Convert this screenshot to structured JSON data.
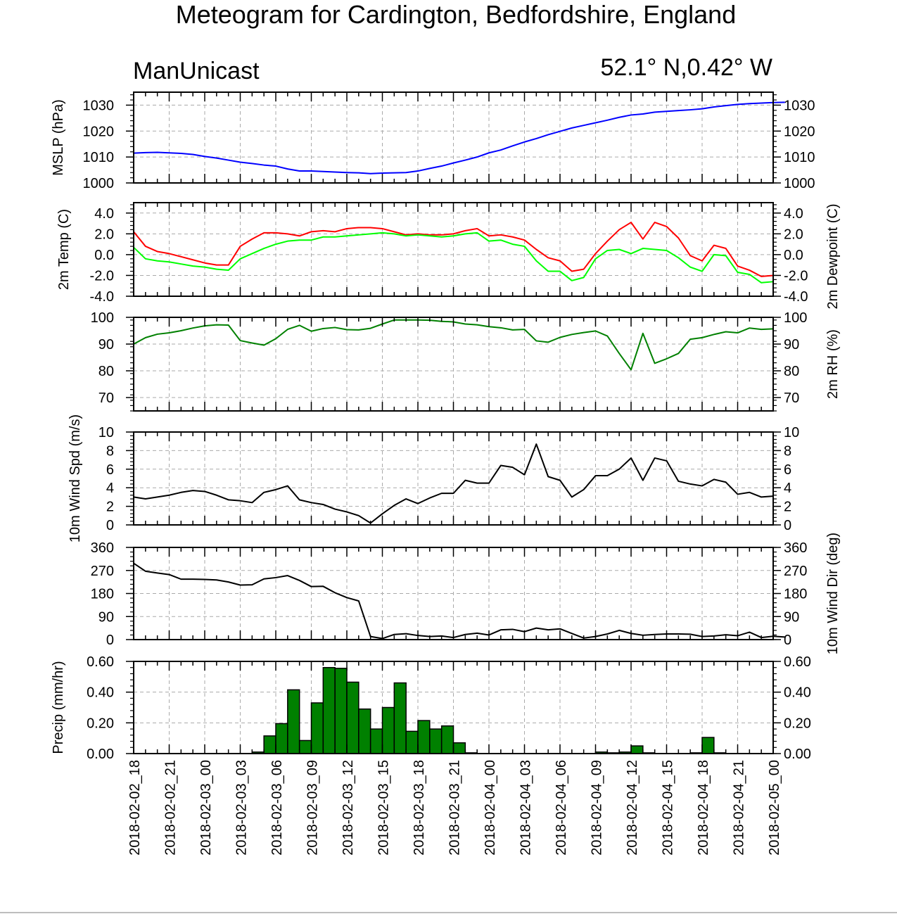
{
  "header": {
    "title": "Meteogram for Cardington, Bedfordshire, England",
    "model": "ManUnicast",
    "location": "52.1° N,0.42° W"
  },
  "chart_data": [
    {
      "id": "mslp",
      "type": "line",
      "ylabel": "MSLP (hPa)",
      "ylim": [
        1000,
        1035
      ],
      "yticks": [
        1000,
        1010,
        1020,
        1030
      ],
      "ytick_labels": [
        "1000",
        "1010",
        "1020",
        "1030"
      ],
      "series": [
        {
          "color": "#0000ff",
          "values": [
            1011.5,
            1011.7,
            1011.8,
            1011.6,
            1011.4,
            1011.0,
            1010.2,
            1009.6,
            1008.8,
            1008.0,
            1007.5,
            1006.9,
            1006.5,
            1005.4,
            1004.6,
            1004.6,
            1004.4,
            1004.2,
            1004.0,
            1003.9,
            1003.6,
            1003.8,
            1003.9,
            1004.0,
            1004.6,
            1005.6,
            1006.5,
            1007.7,
            1008.8,
            1010.0,
            1011.6,
            1012.7,
            1014.3,
            1015.8,
            1017.1,
            1018.6,
            1019.9,
            1021.2,
            1022.2,
            1023.2,
            1024.2,
            1025.3,
            1026.2,
            1026.6,
            1027.3,
            1027.6,
            1027.9,
            1028.2,
            1028.6,
            1029.3,
            1029.8,
            1030.3,
            1030.6,
            1030.8,
            1031.0,
            1031.1
          ]
        }
      ]
    },
    {
      "id": "temp",
      "type": "line",
      "ylabel": "2m Temp (C)",
      "ylabel_right": "2m Dewpoint (C)",
      "ylim": [
        -4,
        5
      ],
      "yticks": [
        -4,
        -2,
        0,
        2,
        4
      ],
      "ytick_labels": [
        "-4.0",
        "-2.0",
        "0.0",
        "2.0",
        "4.0"
      ],
      "series": [
        {
          "color": "#ff0000",
          "values": [
            2.2,
            0.8,
            0.3,
            0.1,
            -0.2,
            -0.5,
            -0.8,
            -1.0,
            -1.0,
            0.8,
            1.5,
            2.1,
            2.1,
            2.0,
            1.8,
            2.2,
            2.3,
            2.2,
            2.5,
            2.6,
            2.6,
            2.5,
            2.2,
            1.9,
            2.0,
            1.9,
            1.9,
            2.0,
            2.3,
            2.5,
            1.8,
            1.9,
            1.7,
            1.4,
            0.5,
            -0.3,
            -0.6,
            -1.6,
            -1.4,
            0.1,
            1.3,
            2.4,
            3.1,
            1.5,
            3.1,
            2.7,
            1.6,
            -0.1,
            -0.6,
            0.9,
            0.6,
            -1.1,
            -1.5,
            -2.1,
            -2.0
          ]
        },
        {
          "color": "#00ff00",
          "values": [
            0.7,
            -0.4,
            -0.6,
            -0.7,
            -0.9,
            -1.1,
            -1.2,
            -1.4,
            -1.5,
            -0.4,
            0.1,
            0.6,
            1.0,
            1.3,
            1.4,
            1.4,
            1.7,
            1.7,
            1.8,
            1.9,
            2.0,
            2.1,
            2.0,
            1.8,
            1.9,
            1.8,
            1.7,
            1.8,
            2.0,
            2.1,
            1.3,
            1.4,
            1.0,
            0.8,
            -0.6,
            -1.6,
            -1.6,
            -2.5,
            -2.2,
            -0.4,
            0.4,
            0.5,
            0.1,
            0.6,
            0.5,
            0.4,
            -0.3,
            -1.2,
            -1.6,
            0.0,
            -0.1,
            -1.7,
            -1.9,
            -2.7,
            -2.6
          ]
        }
      ]
    },
    {
      "id": "rh",
      "type": "line",
      "ylabel": "2m RH (%)",
      "ylim": [
        65,
        100
      ],
      "yticks": [
        70,
        80,
        90,
        100
      ],
      "ytick_labels": [
        "70",
        "80",
        "90",
        "100"
      ],
      "series": [
        {
          "color": "#008000",
          "values": [
            90.0,
            92.4,
            93.7,
            94.2,
            95.0,
            96.0,
            96.8,
            97.2,
            97.1,
            91.3,
            90.4,
            89.6,
            92.0,
            95.5,
            97.0,
            94.8,
            95.8,
            96.2,
            95.4,
            95.3,
            95.9,
            97.5,
            99.0,
            99.0,
            99.0,
            98.9,
            98.5,
            98.3,
            97.5,
            97.2,
            96.5,
            96.1,
            95.3,
            95.5,
            91.2,
            90.7,
            92.5,
            93.6,
            94.3,
            94.9,
            93.0,
            86.5,
            80.4,
            94.0,
            82.8,
            84.5,
            86.5,
            91.8,
            92.4,
            93.6,
            94.6,
            94.2,
            96.0,
            95.5,
            95.7
          ]
        }
      ]
    },
    {
      "id": "wind_speed",
      "type": "line",
      "ylabel": "10m Wind Spd (m/s)",
      "ylim": [
        0,
        10
      ],
      "yticks": [
        0,
        2,
        4,
        6,
        8,
        10
      ],
      "ytick_labels": [
        "0",
        "2",
        "4",
        "6",
        "8",
        "10"
      ],
      "series": [
        {
          "color": "#000000",
          "values": [
            3.0,
            2.8,
            3.0,
            3.2,
            3.5,
            3.7,
            3.6,
            3.2,
            2.7,
            2.6,
            2.4,
            3.5,
            3.8,
            4.2,
            2.7,
            2.4,
            2.2,
            1.7,
            1.4,
            1.0,
            0.2,
            1.2,
            2.1,
            2.8,
            2.3,
            2.9,
            3.4,
            3.4,
            4.8,
            4.5,
            4.5,
            6.4,
            6.2,
            5.4,
            8.7,
            5.2,
            4.8,
            3.0,
            3.8,
            5.3,
            5.3,
            6.0,
            7.2,
            4.8,
            7.2,
            6.9,
            4.7,
            4.4,
            4.2,
            4.9,
            4.6,
            3.3,
            3.5,
            3.0,
            3.1
          ]
        }
      ]
    },
    {
      "id": "wind_dir",
      "type": "line",
      "ylabel": "10m Wind Dir (deg)",
      "ylim": [
        0,
        360
      ],
      "yticks": [
        0,
        90,
        180,
        270,
        360
      ],
      "ytick_labels": [
        "0",
        "90",
        "180",
        "270",
        "360"
      ],
      "series": [
        {
          "color": "#000000",
          "values": [
            298,
            267,
            260,
            254,
            236,
            236,
            235,
            233,
            225,
            213,
            214,
            237,
            242,
            250,
            231,
            207,
            208,
            183,
            164,
            151,
            12,
            4,
            20,
            23,
            16,
            12,
            14,
            8,
            20,
            25,
            18,
            38,
            40,
            31,
            45,
            38,
            42,
            24,
            6,
            12,
            22,
            36,
            24,
            17,
            20,
            22,
            22,
            21,
            12,
            14,
            19,
            15,
            29,
            8,
            13,
            10
          ]
        }
      ]
    },
    {
      "id": "precip",
      "type": "bar",
      "ylabel": "Precip (mm/hr)",
      "ylim": [
        0,
        0.6
      ],
      "yticks": [
        0,
        0.2,
        0.4,
        0.6
      ],
      "ytick_labels": [
        "0.00",
        "0.20",
        "0.40",
        "0.60"
      ],
      "bar_color": "#008000",
      "values": [
        0,
        0,
        0,
        0,
        0,
        0,
        0,
        0,
        0,
        0,
        0.01,
        0.115,
        0.195,
        0.415,
        0.085,
        0.33,
        0.56,
        0.555,
        0.465,
        0.29,
        0.16,
        0.3,
        0.46,
        0.145,
        0.215,
        0.16,
        0.18,
        0.07,
        0.005,
        0,
        0,
        0,
        0,
        0,
        0,
        0,
        0,
        0,
        0,
        0.01,
        0.005,
        0.01,
        0.05,
        0.005,
        0,
        0,
        0,
        0.005,
        0.105,
        0.005,
        0,
        0,
        0,
        0
      ]
    }
  ],
  "x_axis": {
    "labels": [
      "2018-02-02_18",
      "2018-02-02_21",
      "2018-02-03_00",
      "2018-02-03_03",
      "2018-02-03_06",
      "2018-02-03_09",
      "2018-02-03_12",
      "2018-02-03_15",
      "2018-02-03_18",
      "2018-02-03_21",
      "2018-02-04_00",
      "2018-02-04_03",
      "2018-02-04_06",
      "2018-02-04_09",
      "2018-02-04_12",
      "2018-02-04_15",
      "2018-02-04_18",
      "2018-02-04_21",
      "2018-02-05_00"
    ],
    "range_hours": [
      0,
      54
    ]
  },
  "colors": {
    "grid": "#aaaaaa",
    "axis": "#000000"
  }
}
